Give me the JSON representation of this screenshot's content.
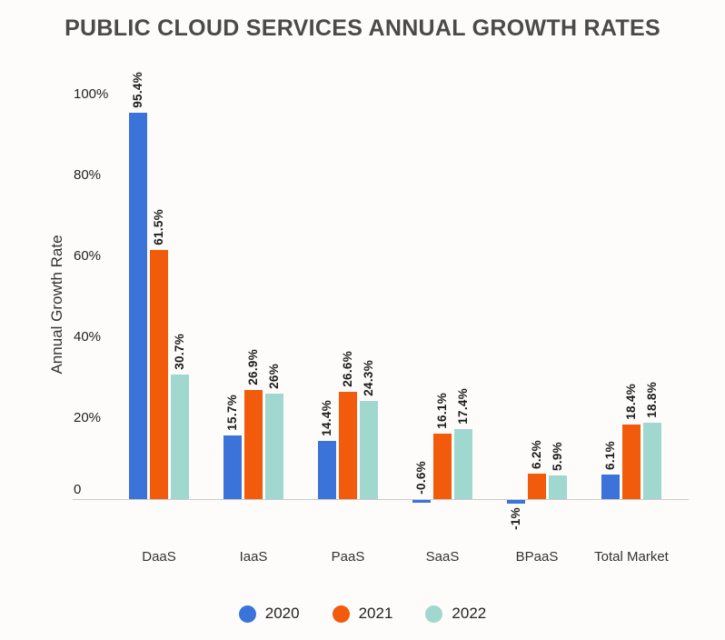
{
  "title": "PUBLIC CLOUD SERVICES ANNUAL GROWTH RATES",
  "colors": {
    "background": "#fdfcfa",
    "title_text": "#4a4a4a",
    "axis_line": "#cbcbcb",
    "series_2020": "#3b73d8",
    "series_2021": "#f25a0c",
    "series_2022": "#a0d7cf"
  },
  "chart_data": {
    "type": "bar",
    "title": "PUBLIC CLOUD SERVICES ANNUAL GROWTH RATES",
    "xlabel": "",
    "ylabel": "Annual Growth Rate",
    "categories": [
      "DaaS",
      "IaaS",
      "PaaS",
      "SaaS",
      "BPaaS",
      "Total Market"
    ],
    "y_ticks": [
      {
        "label": "100%",
        "value": 100
      },
      {
        "label": "80%",
        "value": 80
      },
      {
        "label": "60%",
        "value": 60
      },
      {
        "label": "40%",
        "value": 40
      },
      {
        "label": "20%",
        "value": 20
      },
      {
        "label": "0",
        "value": 0
      }
    ],
    "ylim": [
      -5,
      105
    ],
    "grid": false,
    "legend_position": "bottom",
    "series": [
      {
        "name": "2020",
        "color": "#3b73d8",
        "values": [
          95.4,
          15.7,
          14.4,
          -0.6,
          -1,
          6.1
        ],
        "labels": [
          "95.4%",
          "15.7%",
          "14.4%",
          "-0.6%",
          "-1%",
          "6.1%"
        ],
        "label_side": [
          "above",
          "above",
          "above",
          "above",
          "below",
          "above"
        ]
      },
      {
        "name": "2021",
        "color": "#f25a0c",
        "values": [
          61.5,
          26.9,
          26.6,
          16.1,
          6.2,
          18.4
        ],
        "labels": [
          "61.5%",
          "26.9%",
          "26.6%",
          "16.1%",
          "6.2%",
          "18.4%"
        ],
        "label_side": [
          "above",
          "above",
          "above",
          "above",
          "above",
          "above"
        ]
      },
      {
        "name": "2022",
        "color": "#a0d7cf",
        "values": [
          30.7,
          26,
          24.3,
          17.4,
          5.9,
          18.8
        ],
        "labels": [
          "30.7%",
          "26%",
          "24.3%",
          "17.4%",
          "5.9%",
          "18.8%"
        ],
        "label_side": [
          "above",
          "above",
          "above",
          "above",
          "above",
          "above"
        ]
      }
    ]
  }
}
